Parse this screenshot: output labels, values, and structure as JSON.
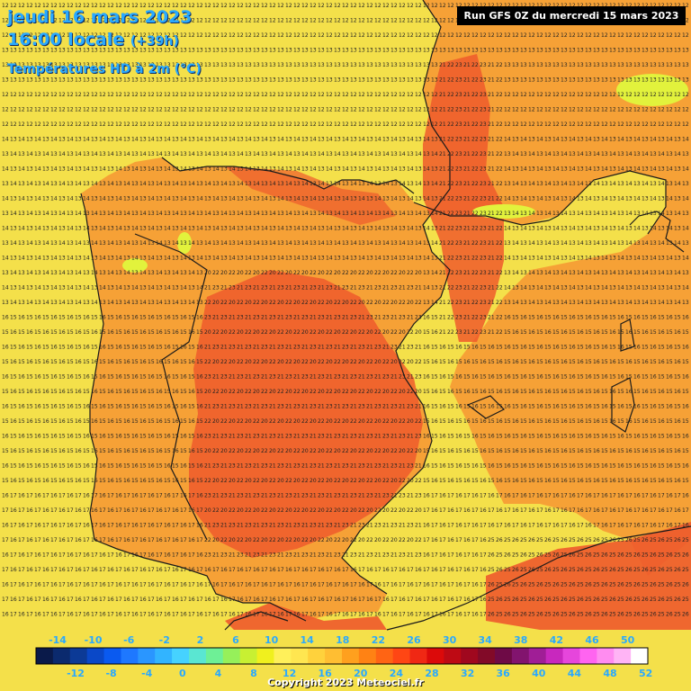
{
  "header": {
    "date_line": "jeudi 16 mars 2023",
    "time_line": "16:00 locale",
    "lead_time": "(+39h)",
    "field_line": "Températures HD à 2m (°C)"
  },
  "run_info": "Run GFS 0Z du mercredi 15 mars 2023",
  "copyright": "Copyright 2023 Meteociel.fr",
  "legend": {
    "top_labels": [
      "-14",
      "-10",
      "-6",
      "-2",
      "2",
      "6",
      "10",
      "14",
      "18",
      "22",
      "26",
      "30",
      "34",
      "38",
      "42",
      "46",
      "50"
    ],
    "bottom_labels": [
      "-12",
      "-8",
      "-4",
      "0",
      "4",
      "8",
      "12",
      "16",
      "20",
      "24",
      "28",
      "32",
      "36",
      "40",
      "44",
      "48",
      "52"
    ],
    "colors": [
      "#0a1a4a",
      "#0b2a6e",
      "#0c3a96",
      "#0a48c8",
      "#0a5af0",
      "#1e78ff",
      "#2a96ff",
      "#32b4ff",
      "#46d2ff",
      "#5ae6d2",
      "#6ef096",
      "#96f05a",
      "#c8f032",
      "#f0f01e",
      "#fff05a",
      "#ffe650",
      "#ffd23c",
      "#ffbe32",
      "#ffa01e",
      "#ff8214",
      "#ff6414",
      "#ff4614",
      "#f02814",
      "#dc0a0a",
      "#be0a14",
      "#a0081e",
      "#820a28",
      "#6e0a46",
      "#82146e",
      "#a01e96",
      "#c828be",
      "#e646dc",
      "#ff64f0",
      "#ff8cf0",
      "#ffb4f5",
      "#ffffff"
    ]
  },
  "map_style": {
    "ocean_color": "#f4e04a",
    "land_color": "#f6a136",
    "hot_color": "#ee5a2c",
    "cool_color": "#e2f23c",
    "border_color": "#1a1a1a",
    "title_color": "#29a9ff"
  }
}
